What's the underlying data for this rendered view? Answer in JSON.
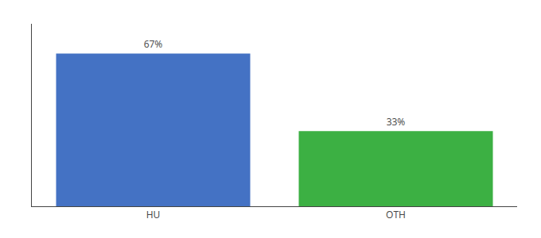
{
  "chart_data": {
    "type": "bar",
    "categories": [
      "HU",
      "OTH"
    ],
    "values": [
      67,
      33
    ],
    "value_labels": [
      "67%",
      "33%"
    ],
    "colors": [
      "#4472c4",
      "#3cb043"
    ],
    "ylim": [
      0,
      80
    ],
    "yticks": [],
    "grid": false,
    "data_labels": true,
    "tick_labels": "x"
  }
}
